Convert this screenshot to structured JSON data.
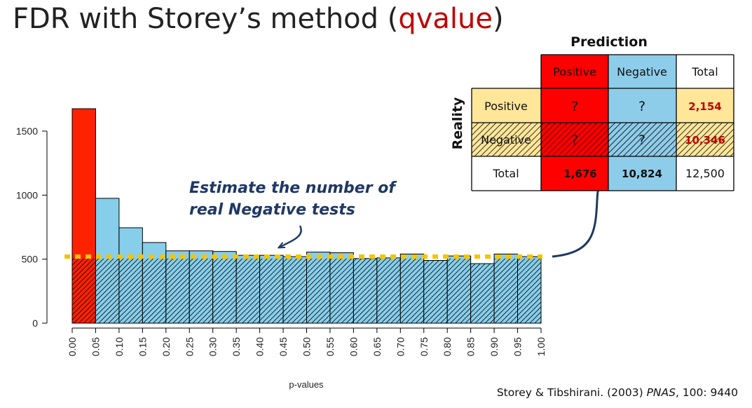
{
  "title": {
    "prefix": "FDR with Storey’s method (",
    "highlight": "qvalue",
    "suffix": ")"
  },
  "annotation": {
    "line1": "Estimate the number of",
    "line2": "real Negative tests"
  },
  "citation": {
    "authors": "Storey & Tibshirani. (2003) ",
    "journal": "PNAS",
    "rest": ", 100: 9440"
  },
  "table": {
    "heading": "Prediction",
    "row_axis_label": "Reality",
    "col_headers": [
      "Positive",
      "Negative",
      "Total"
    ],
    "rows": [
      {
        "label": "Positive",
        "cells": [
          "?",
          "?",
          "2,154"
        ]
      },
      {
        "label": "Negative",
        "cells": [
          "?",
          "?",
          "10,346"
        ]
      },
      {
        "label": "Total",
        "cells": [
          "1,676",
          "10,824",
          "12,500"
        ]
      }
    ]
  },
  "colors": {
    "red": "#ff2200",
    "blue": "#87ceeb",
    "yellow": "#ffe699",
    "gold": "#f5c400",
    "table_red": "#ff0000",
    "table_blue": "#8ecdea",
    "value_red": "#c00000",
    "arrow": "#1f3864"
  },
  "chart_data": {
    "type": "bar",
    "xlabel": "p-values",
    "ylabel": "",
    "ylim": [
      0,
      1700
    ],
    "xlim": [
      0,
      1
    ],
    "y_ticks": [
      0,
      500,
      1000,
      1500
    ],
    "x_ticks": [
      "0.00",
      "0.05",
      "0.10",
      "0.15",
      "0.20",
      "0.25",
      "0.30",
      "0.35",
      "0.40",
      "0.45",
      "0.50",
      "0.55",
      "0.60",
      "0.65",
      "0.70",
      "0.75",
      "0.80",
      "0.85",
      "0.90",
      "0.95",
      "1.00"
    ],
    "bin_width": 0.05,
    "series": [
      {
        "values": [
          1675,
          975,
          745,
          630,
          565,
          565,
          560,
          530,
          530,
          520,
          555,
          550,
          505,
          510,
          540,
          490,
          525,
          465,
          540,
          520
        ]
      },
      {
        "values": [
          505,
          505,
          505,
          505,
          505,
          505,
          505,
          505,
          505,
          505,
          505,
          505,
          505,
          505,
          505,
          505,
          505,
          505,
          505,
          505
        ]
      }
    ],
    "threshold_line": 520,
    "grid": false
  }
}
